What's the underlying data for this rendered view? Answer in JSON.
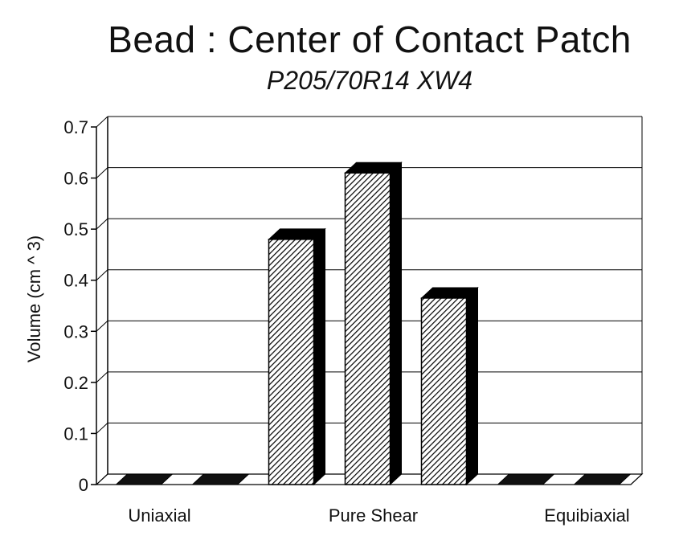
{
  "chart_data": {
    "type": "bar",
    "title": "Bead : Center of Contact Patch",
    "subtitle": "P205/70R14 XW4",
    "ylabel": "Volume (cm ^ 3)",
    "xlabel": "",
    "ylim": [
      0,
      0.7
    ],
    "yticks": [
      "0",
      "0.1",
      "0.2",
      "0.3",
      "0.4",
      "0.5",
      "0.6",
      "0.7"
    ],
    "category_labels": [
      "Uniaxial",
      "",
      "Pure Shear",
      "",
      "Equibiaxial"
    ],
    "categories": [
      "",
      "",
      "",
      "",
      "",
      "",
      ""
    ],
    "values": [
      0,
      0,
      0.48,
      0.61,
      0.365,
      0,
      0
    ],
    "grid": true,
    "legend": "none"
  }
}
